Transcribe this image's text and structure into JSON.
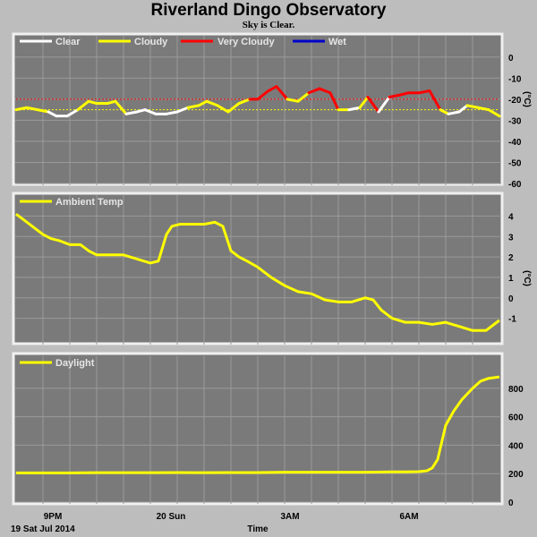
{
  "page": {
    "title": "Riverland Dingo Observatory",
    "subtitle": "Sky is Clear."
  },
  "x_axis": {
    "ticks": [
      "9PM",
      "20 Sun",
      "3AM",
      "6AM"
    ],
    "start_label": "19 Sat Jul 2014",
    "title": "Time"
  },
  "colors": {
    "panel_bg": "#7a7a7a",
    "grid": "#9a9a9a",
    "clear": "#ffffff",
    "cloudy": "#ffff00",
    "very_cloudy": "#ff0000",
    "wet": "#0000cc"
  },
  "chart_data": [
    {
      "type": "line",
      "panel": "sky",
      "ylabel": "(°C)",
      "ylim": [
        -60,
        5
      ],
      "yticks": [
        "0",
        "-10",
        "-20",
        "-30",
        "-40",
        "-50",
        "-60"
      ],
      "legend": [
        "Clear",
        "Cloudy",
        "Very Cloudy",
        "Wet"
      ],
      "legend_colors": [
        "#ffffff",
        "#ffff00",
        "#ff0000",
        "#0000cc"
      ],
      "reference_lines": [
        {
          "value": -20,
          "color": "#ff0000"
        },
        {
          "value": -25,
          "color": "#ffff00"
        }
      ],
      "x_hours": [
        18.0,
        18.4,
        18.8,
        19.2,
        19.5,
        19.9,
        20.3,
        20.7,
        21.0,
        21.4,
        21.7,
        22.1,
        22.5,
        22.8,
        23.2,
        23.6,
        24.0,
        24.4,
        24.8,
        25.1,
        25.5,
        25.9,
        26.3,
        26.7,
        27.0,
        27.4,
        27.7,
        28.1,
        28.5,
        28.9,
        29.3,
        29.7,
        30.0,
        30.4,
        30.8,
        31.1,
        31.5,
        31.9,
        32.3,
        32.6,
        33.0,
        33.4,
        33.8,
        34.1,
        34.5,
        34.8,
        35.2,
        35.6,
        36.0
      ],
      "values": [
        -25,
        -24,
        -25,
        -26,
        -28,
        -28,
        -25,
        -21,
        -22,
        -22,
        -21,
        -27,
        -26,
        -25,
        -27,
        -27,
        -26,
        -24,
        -23,
        -21,
        -23,
        -26,
        -22,
        -20,
        -20,
        -16,
        -14,
        -20,
        -21,
        -17,
        -15,
        -17,
        -25,
        -25,
        -24,
        -19,
        -26,
        -19,
        -18,
        -17,
        -17,
        -16,
        -25,
        -27,
        -26,
        -23,
        -24,
        -25,
        -28
      ],
      "states": [
        "cloudy",
        "cloudy",
        "cloudy",
        "clear",
        "clear",
        "clear",
        "cloudy",
        "cloudy",
        "cloudy",
        "cloudy",
        "cloudy",
        "clear",
        "clear",
        "clear",
        "clear",
        "clear",
        "clear",
        "cloudy",
        "cloudy",
        "cloudy",
        "cloudy",
        "cloudy",
        "cloudy",
        "very_cloudy",
        "very_cloudy",
        "very_cloudy",
        "very_cloudy",
        "cloudy",
        "cloudy",
        "very_cloudy",
        "very_cloudy",
        "very_cloudy",
        "cloudy",
        "clear",
        "cloudy",
        "very_cloudy",
        "clear",
        "very_cloudy",
        "very_cloudy",
        "very_cloudy",
        "very_cloudy",
        "very_cloudy",
        "cloudy",
        "clear",
        "clear",
        "cloudy",
        "cloudy",
        "cloudy",
        "clear"
      ]
    },
    {
      "type": "line",
      "panel": "ambient",
      "legend": [
        "Ambient Temp"
      ],
      "ylabel": "(°C)",
      "ylim": [
        -2.2,
        4.5
      ],
      "yticks": [
        "4",
        "3",
        "2",
        "1",
        "0",
        "-1"
      ],
      "x_hours": [
        18.0,
        18.3,
        18.6,
        19.0,
        19.3,
        19.6,
        20.0,
        20.4,
        20.7,
        21.0,
        21.5,
        22.0,
        22.5,
        23.0,
        23.3,
        23.6,
        23.8,
        24.1,
        24.5,
        25.0,
        25.4,
        25.7,
        26.0,
        26.3,
        26.6,
        27.0,
        27.5,
        28.0,
        28.5,
        29.0,
        29.5,
        30.0,
        30.5,
        31.0,
        31.3,
        31.6,
        32.0,
        32.5,
        33.0,
        33.5,
        34.0,
        34.5,
        35.0,
        35.5,
        36.0
      ],
      "values": [
        4.1,
        3.8,
        3.5,
        3.1,
        2.9,
        2.8,
        2.6,
        2.6,
        2.3,
        2.1,
        2.1,
        2.1,
        1.9,
        1.7,
        1.8,
        3.1,
        3.5,
        3.6,
        3.6,
        3.6,
        3.7,
        3.5,
        2.3,
        2.0,
        1.8,
        1.5,
        1.0,
        0.6,
        0.3,
        0.2,
        -0.1,
        -0.2,
        -0.2,
        0.0,
        -0.1,
        -0.6,
        -1.0,
        -1.2,
        -1.2,
        -1.3,
        -1.2,
        -1.4,
        -1.6,
        -1.6,
        -1.1
      ]
    },
    {
      "type": "line",
      "panel": "daylight",
      "legend": [
        "Daylight"
      ],
      "ylim": [
        0,
        950
      ],
      "yticks": [
        "800",
        "600",
        "400",
        "200",
        "0"
      ],
      "x_hours": [
        18.0,
        19.0,
        20.0,
        21.0,
        22.0,
        23.0,
        24.0,
        25.0,
        26.0,
        27.0,
        28.0,
        29.0,
        30.0,
        31.0,
        32.0,
        32.5,
        33.0,
        33.3,
        33.5,
        33.7,
        34.0,
        34.3,
        34.6,
        35.0,
        35.3,
        35.6,
        36.0
      ],
      "values": [
        205,
        205,
        205,
        207,
        207,
        207,
        208,
        207,
        208,
        208,
        210,
        210,
        210,
        210,
        212,
        212,
        214,
        220,
        240,
        300,
        540,
        640,
        720,
        800,
        850,
        870,
        880
      ]
    }
  ]
}
